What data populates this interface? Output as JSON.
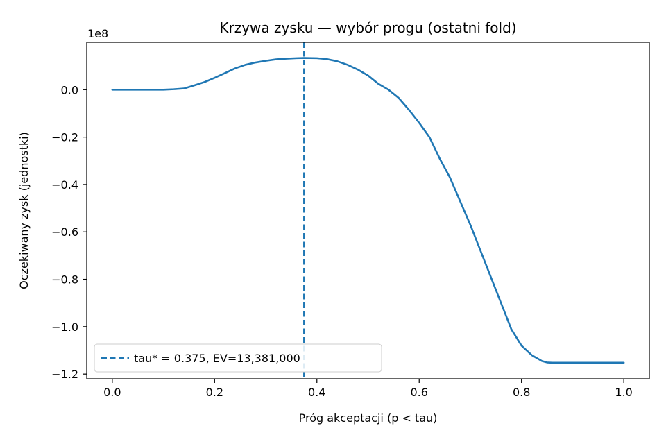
{
  "chart_data": {
    "type": "line",
    "title": "Krzywa zysku — wybór progu (ostatni fold)",
    "xlabel": "Próg akceptacji (p < tau)",
    "ylabel": "Oczekiwany zysk (jednostki)",
    "y_offset_label": "1e8",
    "xlim": [
      -0.05,
      1.05
    ],
    "ylim": [
      -1.22,
      0.2
    ],
    "xticks": [
      0.0,
      0.2,
      0.4,
      0.6,
      0.8,
      1.0
    ],
    "xtick_labels": [
      "0.0",
      "0.2",
      "0.4",
      "0.6",
      "0.8",
      "1.0"
    ],
    "yticks": [
      0.0,
      -0.2,
      -0.4,
      -0.6,
      -0.8,
      -1.0,
      -1.2
    ],
    "ytick_labels": [
      "0.0",
      "−0.2",
      "−0.4",
      "−0.6",
      "−0.8",
      "−1.0",
      "−1.2"
    ],
    "grid": false,
    "legend_position": "lower-left",
    "series": [
      {
        "color": "#1f77b4",
        "x": [
          0.0,
          0.05,
          0.1,
          0.12,
          0.14,
          0.16,
          0.18,
          0.2,
          0.22,
          0.24,
          0.26,
          0.28,
          0.3,
          0.32,
          0.34,
          0.36,
          0.375,
          0.4,
          0.42,
          0.44,
          0.46,
          0.48,
          0.5,
          0.52,
          0.54,
          0.56,
          0.58,
          0.6,
          0.62,
          0.64,
          0.66,
          0.68,
          0.7,
          0.72,
          0.74,
          0.76,
          0.78,
          0.8,
          0.82,
          0.84,
          0.85,
          0.86,
          0.87,
          0.88,
          0.9,
          0.95,
          1.0
        ],
        "values": [
          0.0,
          0.0,
          0.0,
          0.002,
          0.005,
          0.018,
          0.032,
          0.05,
          0.07,
          0.09,
          0.105,
          0.115,
          0.122,
          0.128,
          0.131,
          0.133,
          0.1338,
          0.133,
          0.129,
          0.12,
          0.105,
          0.085,
          0.06,
          0.025,
          0.0,
          -0.035,
          -0.085,
          -0.14,
          -0.2,
          -0.29,
          -0.37,
          -0.47,
          -0.57,
          -0.68,
          -0.79,
          -0.9,
          -1.01,
          -1.08,
          -1.12,
          -1.145,
          -1.151,
          -1.152,
          -1.152,
          -1.152,
          -1.152,
          -1.152,
          -1.152
        ]
      }
    ],
    "threshold": {
      "x": 0.375,
      "style": "dashed",
      "color": "#1f77b4",
      "legend_label": "tau* = 0.375, EV=13,381,000"
    }
  }
}
